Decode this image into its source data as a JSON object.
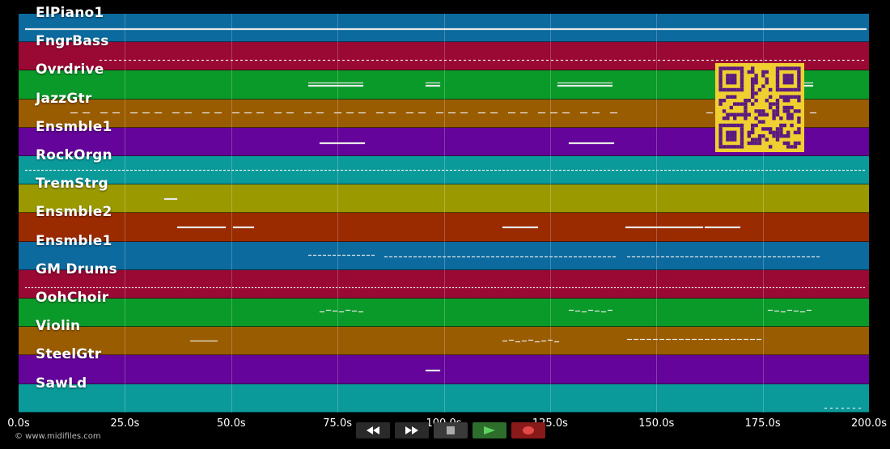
{
  "app": {
    "copyright": "© www.midifiles.com",
    "qr_icon": "qr-code-icon",
    "qr_color": "#f0d030",
    "qr_fg": "#5a1a80"
  },
  "timeline": {
    "min_seconds": 0,
    "max_seconds": 200,
    "ticks": [
      {
        "value": 0,
        "label": "0.0s"
      },
      {
        "value": 25,
        "label": "25.0s"
      },
      {
        "value": 50,
        "label": "50.0s"
      },
      {
        "value": 75,
        "label": "75.0s"
      },
      {
        "value": 100,
        "label": "100.0s"
      },
      {
        "value": 125,
        "label": "125.0s"
      },
      {
        "value": 150,
        "label": "150.0s"
      },
      {
        "value": 175,
        "label": "175.0s"
      },
      {
        "value": 200,
        "label": "200.0s"
      }
    ]
  },
  "tracks": [
    {
      "name": "ElPiano1",
      "color": "#0c6a9e"
    },
    {
      "name": "FngrBass",
      "color": "#9a0834"
    },
    {
      "name": "Ovrdrive",
      "color": "#0a9a2a"
    },
    {
      "name": "JazzGtr",
      "color": "#9a5c00"
    },
    {
      "name": "Ensmble1",
      "color": "#64049a"
    },
    {
      "name": "RockOrgn",
      "color": "#0a9a9a"
    },
    {
      "name": "TremStrg",
      "color": "#9a9a00"
    },
    {
      "name": "Ensmble2",
      "color": "#9a2a00"
    },
    {
      "name": "Ensmble1",
      "color": "#0c6a9e"
    },
    {
      "name": "GM Drums",
      "color": "#9a0834"
    },
    {
      "name": "OohChoir",
      "color": "#0a9a2a"
    },
    {
      "name": "Violin",
      "color": "#9a5c00"
    },
    {
      "name": "SteelGtr",
      "color": "#64049a"
    },
    {
      "name": "SawLd",
      "color": "#0a9a9a"
    }
  ],
  "transport": {
    "rewind_icon": "rewind-icon",
    "fastforward_icon": "fast-forward-icon",
    "stop_icon": "stop-icon",
    "play_icon": "play-icon",
    "record_icon": "record-icon"
  }
}
